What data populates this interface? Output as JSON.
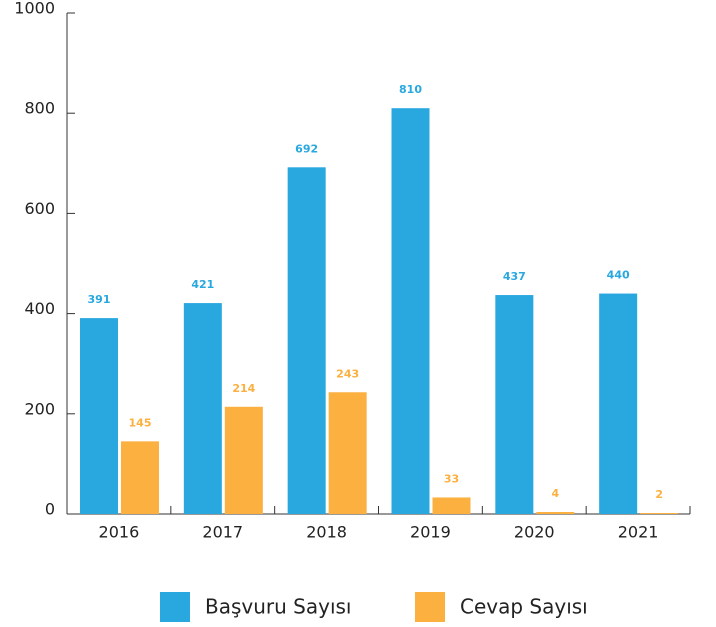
{
  "chart_data": {
    "type": "bar",
    "categories": [
      "2016",
      "2017",
      "2018",
      "2019",
      "2020",
      "2021"
    ],
    "series": [
      {
        "name": "Başvuru Sayısı",
        "color": "#29a8e0",
        "values": [
          391,
          421,
          692,
          810,
          437,
          440
        ]
      },
      {
        "name": "Cevap Sayısı",
        "color": "#fbb040",
        "values": [
          145,
          214,
          243,
          33,
          4,
          2
        ]
      }
    ],
    "ylim": [
      0,
      1000
    ],
    "yticks": [
      0,
      200,
      400,
      600,
      800,
      1000
    ],
    "grid": false,
    "legend": "bottom"
  }
}
